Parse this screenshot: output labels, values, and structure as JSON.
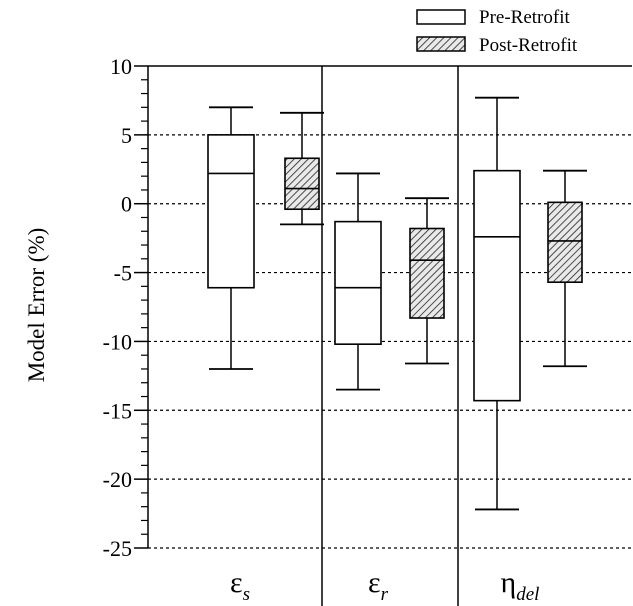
{
  "chart_data": {
    "type": "box",
    "ylabel": "Model Error (%)",
    "ylim": [
      -25,
      10
    ],
    "yticks": [
      10,
      5,
      0,
      -5,
      -10,
      -15,
      -20,
      -25
    ],
    "gridlines": [
      5,
      0,
      -5,
      -10,
      -15,
      -20,
      -25
    ],
    "grid_style": "dashed horizontal",
    "legend": {
      "position": "top-right"
    },
    "legend_entries": [
      {
        "name": "Pre-Retrofit",
        "fill": "white"
      },
      {
        "name": "Post-Retrofit",
        "fill": "hatched"
      }
    ],
    "categories": [
      {
        "symbol": "ε",
        "subscript": "s"
      },
      {
        "symbol": "ε",
        "subscript": "r"
      },
      {
        "symbol": "η",
        "subscript": "del"
      }
    ],
    "series": [
      {
        "name": "Pre-Retrofit",
        "boxes": [
          {
            "min": -12,
            "q1": -6.1,
            "median": 2.2,
            "q3": 5.0,
            "max": 7.0
          },
          {
            "min": -13.5,
            "q1": -10.2,
            "median": -6.1,
            "q3": -1.3,
            "max": 2.2
          },
          {
            "min": -22.2,
            "q1": -14.3,
            "median": -2.4,
            "q3": 2.4,
            "max": 7.7
          }
        ]
      },
      {
        "name": "Post-Retrofit",
        "boxes": [
          {
            "min": -1.5,
            "q1": -0.4,
            "median": 1.1,
            "q3": 3.3,
            "max": 6.6
          },
          {
            "min": -11.6,
            "q1": -8.3,
            "median": -4.1,
            "q3": -1.8,
            "max": 0.4
          },
          {
            "min": -11.8,
            "q1": -5.7,
            "median": -2.7,
            "q3": 0.1,
            "max": 2.4
          }
        ]
      }
    ]
  }
}
